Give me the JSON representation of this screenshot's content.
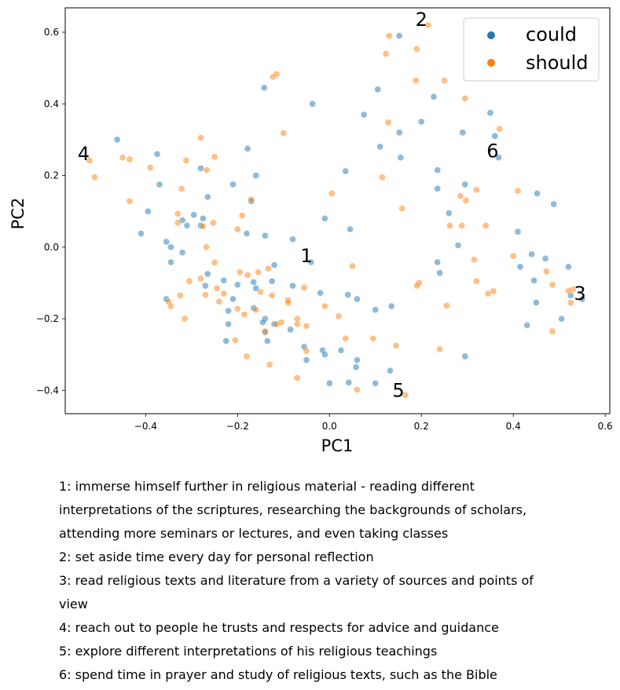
{
  "chart_data": {
    "type": "scatter",
    "xlabel": "PC1",
    "ylabel": "PC2",
    "xlim": [
      -0.575,
      0.61
    ],
    "ylim": [
      -0.465,
      0.668
    ],
    "xticks": [
      -0.4,
      -0.2,
      0.0,
      0.2,
      0.4,
      0.6
    ],
    "xtick_labels": [
      "−0.4",
      "−0.2",
      "0.0",
      "0.2",
      "0.4",
      "0.6"
    ],
    "yticks": [
      -0.4,
      -0.2,
      0.0,
      0.2,
      0.4,
      0.6
    ],
    "ytick_labels": [
      "−0.4",
      "−0.2",
      "0.0",
      "0.2",
      "0.4",
      "0.6"
    ],
    "grid": false,
    "legend": {
      "placement": "top-right"
    },
    "series": [
      {
        "name": "could",
        "color": "#1f77b4",
        "points": [
          [
            0.152,
            0.59
          ],
          [
            0.227,
            0.42
          ],
          [
            -0.142,
            0.445
          ],
          [
            -0.037,
            0.4
          ],
          [
            0.105,
            0.44
          ],
          [
            0.075,
            0.37
          ],
          [
            0.2,
            0.35
          ],
          [
            0.152,
            0.32
          ],
          [
            0.35,
            0.375
          ],
          [
            0.36,
            0.31
          ],
          [
            0.29,
            0.32
          ],
          [
            -0.462,
            0.3
          ],
          [
            0.11,
            0.28
          ],
          [
            -0.178,
            0.275
          ],
          [
            0.155,
            0.25
          ],
          [
            -0.375,
            0.26
          ],
          [
            0.368,
            0.25
          ],
          [
            0.035,
            0.212
          ],
          [
            -0.28,
            0.22
          ],
          [
            -0.16,
            0.2
          ],
          [
            0.235,
            0.215
          ],
          [
            -0.37,
            0.175
          ],
          [
            -0.21,
            0.175
          ],
          [
            0.295,
            0.175
          ],
          [
            0.235,
            0.163
          ],
          [
            -0.265,
            0.14
          ],
          [
            -0.17,
            0.128
          ],
          [
            0.452,
            0.15
          ],
          [
            0.488,
            0.12
          ],
          [
            -0.395,
            0.1
          ],
          [
            0.26,
            0.095
          ],
          [
            -0.01,
            0.08
          ],
          [
            -0.295,
            0.09
          ],
          [
            -0.275,
            0.08
          ],
          [
            -0.32,
            0.075
          ],
          [
            -0.31,
            0.06
          ],
          [
            -0.28,
            0.06
          ],
          [
            -0.41,
            0.038
          ],
          [
            -0.18,
            0.038
          ],
          [
            -0.14,
            0.032
          ],
          [
            0.045,
            0.05
          ],
          [
            -0.08,
            0.022
          ],
          [
            0.41,
            0.043
          ],
          [
            -0.355,
            0.015
          ],
          [
            -0.345,
            0.0
          ],
          [
            0.28,
            0.005
          ],
          [
            -0.32,
            -0.015
          ],
          [
            0.44,
            -0.02
          ],
          [
            0.47,
            -0.032
          ],
          [
            -0.04,
            -0.042
          ],
          [
            -0.345,
            -0.042
          ],
          [
            -0.12,
            -0.05
          ],
          [
            0.235,
            -0.042
          ],
          [
            0.415,
            -0.055
          ],
          [
            0.52,
            -0.055
          ],
          [
            -0.265,
            -0.075
          ],
          [
            0.24,
            -0.072
          ],
          [
            0.445,
            -0.093
          ],
          [
            -0.23,
            -0.093
          ],
          [
            -0.2,
            -0.105
          ],
          [
            -0.165,
            -0.098
          ],
          [
            -0.125,
            -0.095
          ],
          [
            -0.08,
            -0.108
          ],
          [
            -0.27,
            -0.108
          ],
          [
            -0.16,
            -0.115
          ],
          [
            -0.02,
            -0.128
          ],
          [
            0.04,
            -0.133
          ],
          [
            -0.21,
            -0.145
          ],
          [
            0.06,
            -0.145
          ],
          [
            -0.355,
            -0.145
          ],
          [
            0.55,
            -0.145
          ],
          [
            0.525,
            -0.135
          ],
          [
            0.45,
            -0.155
          ],
          [
            0.135,
            -0.165
          ],
          [
            -0.165,
            -0.17
          ],
          [
            0.1,
            -0.175
          ],
          [
            -0.22,
            -0.178
          ],
          [
            -0.14,
            -0.2
          ],
          [
            -0.145,
            -0.21
          ],
          [
            0.505,
            -0.2
          ],
          [
            -0.12,
            -0.215
          ],
          [
            -0.22,
            -0.215
          ],
          [
            -0.085,
            -0.23
          ],
          [
            0.43,
            -0.218
          ],
          [
            -0.14,
            -0.238
          ],
          [
            -0.225,
            -0.262
          ],
          [
            -0.135,
            -0.262
          ],
          [
            -0.055,
            -0.278
          ],
          [
            -0.015,
            -0.288
          ],
          [
            0.025,
            -0.288
          ],
          [
            -0.01,
            -0.3
          ],
          [
            0.295,
            -0.305
          ],
          [
            -0.05,
            -0.315
          ],
          [
            0.06,
            -0.315
          ],
          [
            0.058,
            -0.335
          ],
          [
            0.132,
            -0.345
          ],
          [
            0.0,
            -0.38
          ],
          [
            0.042,
            -0.378
          ],
          [
            0.1,
            -0.38
          ]
        ]
      },
      {
        "name": "should",
        "color": "#ff7f0e",
        "points": [
          [
            0.215,
            0.62
          ],
          [
            0.13,
            0.59
          ],
          [
            0.19,
            0.553
          ],
          [
            0.123,
            0.54
          ],
          [
            -0.115,
            0.483
          ],
          [
            -0.123,
            0.475
          ],
          [
            0.188,
            0.465
          ],
          [
            0.25,
            0.465
          ],
          [
            0.295,
            0.415
          ],
          [
            0.37,
            0.33
          ],
          [
            0.128,
            0.348
          ],
          [
            -0.1,
            0.318
          ],
          [
            -0.28,
            0.305
          ],
          [
            -0.522,
            0.242
          ],
          [
            -0.45,
            0.25
          ],
          [
            -0.435,
            0.245
          ],
          [
            -0.312,
            0.242
          ],
          [
            -0.25,
            0.252
          ],
          [
            -0.39,
            0.222
          ],
          [
            -0.267,
            0.215
          ],
          [
            -0.511,
            0.195
          ],
          [
            0.115,
            0.195
          ],
          [
            -0.322,
            0.163
          ],
          [
            0.41,
            0.157
          ],
          [
            0.32,
            0.16
          ],
          [
            0.005,
            0.15
          ],
          [
            0.285,
            0.143
          ],
          [
            0.297,
            0.13
          ],
          [
            -0.17,
            0.133
          ],
          [
            -0.435,
            0.128
          ],
          [
            0.158,
            0.108
          ],
          [
            -0.33,
            0.093
          ],
          [
            -0.19,
            0.088
          ],
          [
            -0.33,
            0.068
          ],
          [
            -0.253,
            0.068
          ],
          [
            0.262,
            0.06
          ],
          [
            0.288,
            0.06
          ],
          [
            0.34,
            0.06
          ],
          [
            -0.275,
            0.058
          ],
          [
            -0.2,
            0.05
          ],
          [
            -0.268,
            0.0
          ],
          [
            0.315,
            -0.035
          ],
          [
            -0.25,
            -0.043
          ],
          [
            0.05,
            -0.053
          ],
          [
            -0.133,
            -0.06
          ],
          [
            0.4,
            -0.025
          ],
          [
            0.472,
            -0.068
          ],
          [
            -0.195,
            -0.07
          ],
          [
            -0.155,
            -0.07
          ],
          [
            -0.178,
            -0.078
          ],
          [
            -0.305,
            -0.095
          ],
          [
            -0.28,
            -0.088
          ],
          [
            0.195,
            -0.1
          ],
          [
            0.19,
            -0.108
          ],
          [
            0.32,
            -0.095
          ],
          [
            -0.245,
            -0.115
          ],
          [
            -0.055,
            -0.113
          ],
          [
            0.485,
            -0.105
          ],
          [
            0.53,
            -0.118
          ],
          [
            0.52,
            -0.122
          ],
          [
            0.357,
            -0.123
          ],
          [
            0.345,
            -0.13
          ],
          [
            -0.325,
            -0.135
          ],
          [
            -0.27,
            -0.133
          ],
          [
            -0.23,
            -0.13
          ],
          [
            -0.15,
            -0.125
          ],
          [
            -0.125,
            -0.135
          ],
          [
            -0.09,
            -0.148
          ],
          [
            -0.09,
            -0.155
          ],
          [
            -0.35,
            -0.152
          ],
          [
            -0.345,
            -0.165
          ],
          [
            -0.24,
            -0.152
          ],
          [
            -0.2,
            -0.172
          ],
          [
            -0.16,
            -0.175
          ],
          [
            0.525,
            -0.155
          ],
          [
            0.255,
            -0.163
          ],
          [
            -0.01,
            -0.165
          ],
          [
            -0.185,
            -0.188
          ],
          [
            0.02,
            -0.193
          ],
          [
            -0.315,
            -0.2
          ],
          [
            -0.07,
            -0.2
          ],
          [
            -0.07,
            -0.215
          ],
          [
            -0.105,
            -0.21
          ],
          [
            -0.115,
            -0.215
          ],
          [
            -0.05,
            -0.22
          ],
          [
            -0.14,
            -0.235
          ],
          [
            0.485,
            -0.235
          ],
          [
            0.035,
            -0.255
          ],
          [
            -0.205,
            -0.26
          ],
          [
            0.095,
            -0.255
          ],
          [
            0.145,
            -0.275
          ],
          [
            0.24,
            -0.285
          ],
          [
            -0.05,
            -0.29
          ],
          [
            -0.18,
            -0.305
          ],
          [
            -0.13,
            -0.328
          ],
          [
            -0.07,
            -0.365
          ],
          [
            0.06,
            -0.398
          ],
          [
            0.165,
            -0.413
          ]
        ]
      }
    ],
    "annotations": [
      {
        "label": "1",
        "x": -0.05,
        "y": -0.025
      },
      {
        "label": "2",
        "x": 0.2,
        "y": 0.635
      },
      {
        "label": "3",
        "x": 0.545,
        "y": -0.13
      },
      {
        "label": "4",
        "x": -0.535,
        "y": 0.26
      },
      {
        "label": "5",
        "x": 0.15,
        "y": -0.4
      },
      {
        "label": "6",
        "x": 0.355,
        "y": 0.268
      }
    ]
  },
  "caption": {
    "lines": [
      "1: immerse himself further in religious material - reading different",
      "interpretations of the scriptures, researching the backgrounds of scholars,",
      "attending more seminars or lectures, and even taking classes",
      "2: set aside time every day for personal reflection",
      "3: read religious texts and literature from a variety of sources and points of",
      "view",
      "4: reach out to people he trusts and respects for advice and guidance",
      "5: explore different interpretations of his religious teachings",
      "6: spend time in prayer and study of religious texts, such as the Bible"
    ]
  }
}
